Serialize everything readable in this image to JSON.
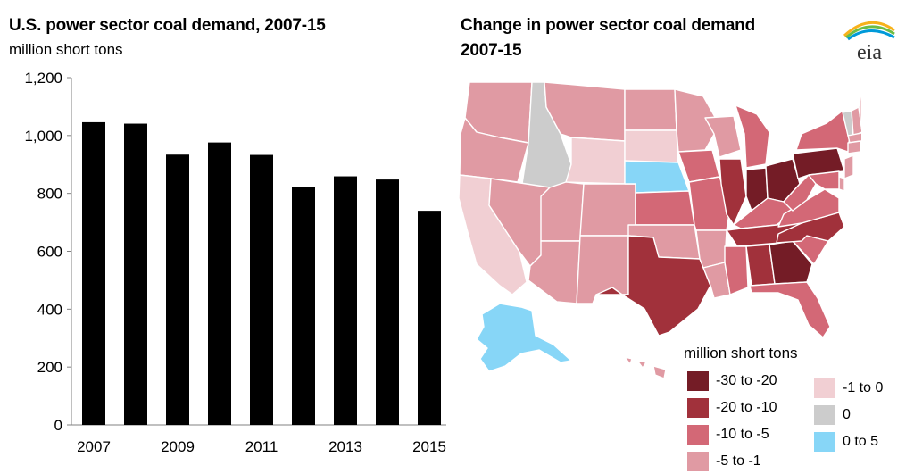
{
  "left": {
    "title": "U.S. power sector coal demand, 2007-15",
    "subtitle": "million short tons"
  },
  "right": {
    "title_line1": "Change in power sector  coal demand",
    "title_line2": "2007-15"
  },
  "logo": {
    "text": "eia",
    "icon": "eia-logo-icon",
    "arc_colors": [
      "#f7b21b",
      "#6cbd45",
      "#009ad9"
    ]
  },
  "chart_data": [
    {
      "type": "bar",
      "title": "U.S. power sector coal demand, 2007-15",
      "ylabel": "million short tons",
      "xlabel": "",
      "categories": [
        "2007",
        "2008",
        "2009",
        "2010",
        "2011",
        "2012",
        "2013",
        "2014",
        "2015"
      ],
      "values": [
        1046,
        1041,
        934,
        976,
        933,
        822,
        859,
        848,
        740
      ],
      "ylim": [
        0,
        1200
      ],
      "yticks": [
        0,
        200,
        400,
        600,
        800,
        1000,
        1200
      ],
      "ytick_labels": [
        "0",
        "200",
        "400",
        "600",
        "800",
        "1,000",
        "1,200"
      ],
      "xtick_labels": [
        "2007",
        "",
        "2009",
        "",
        "2011",
        "",
        "2013",
        "",
        "2015"
      ],
      "bar_color": "#000000",
      "grid": false
    },
    {
      "type": "map",
      "title": "Change in power sector  coal demand 2007-15",
      "legend_title": "million short tons",
      "legend": [
        {
          "label": "-30 to -20",
          "color": "#741c26"
        },
        {
          "label": "-20 to -10",
          "color": "#a1313b"
        },
        {
          "label": "-10 to -5",
          "color": "#d36876"
        },
        {
          "label": "-5 to -1",
          "color": "#e09aa3"
        },
        {
          "label": "-1 to 0",
          "color": "#f1cfd3"
        },
        {
          "label": "0",
          "color": "#cccccc"
        },
        {
          "label": "0 to 5",
          "color": "#87d6f7"
        }
      ],
      "regions": [
        {
          "id": "WA",
          "cat": 3
        },
        {
          "id": "OR",
          "cat": 3
        },
        {
          "id": "CA",
          "cat": 4
        },
        {
          "id": "NV",
          "cat": 3
        },
        {
          "id": "ID",
          "cat": 5
        },
        {
          "id": "MT",
          "cat": 3
        },
        {
          "id": "WY",
          "cat": 4
        },
        {
          "id": "UT",
          "cat": 3
        },
        {
          "id": "AZ",
          "cat": 3
        },
        {
          "id": "CO",
          "cat": 3
        },
        {
          "id": "NM",
          "cat": 3
        },
        {
          "id": "ND",
          "cat": 3
        },
        {
          "id": "SD",
          "cat": 4
        },
        {
          "id": "NE",
          "cat": 6
        },
        {
          "id": "KS",
          "cat": 2
        },
        {
          "id": "OK",
          "cat": 3
        },
        {
          "id": "TX",
          "cat": 1
        },
        {
          "id": "MN",
          "cat": 3
        },
        {
          "id": "IA",
          "cat": 2
        },
        {
          "id": "MO",
          "cat": 2
        },
        {
          "id": "AR",
          "cat": 3
        },
        {
          "id": "LA",
          "cat": 3
        },
        {
          "id": "WI",
          "cat": 3
        },
        {
          "id": "IL",
          "cat": 1
        },
        {
          "id": "MI",
          "cat": 2
        },
        {
          "id": "IN",
          "cat": 0
        },
        {
          "id": "OH",
          "cat": 0
        },
        {
          "id": "KY",
          "cat": 2
        },
        {
          "id": "TN",
          "cat": 1
        },
        {
          "id": "MS",
          "cat": 2
        },
        {
          "id": "AL",
          "cat": 1
        },
        {
          "id": "GA",
          "cat": 0
        },
        {
          "id": "FL",
          "cat": 2
        },
        {
          "id": "SC",
          "cat": 2
        },
        {
          "id": "NC",
          "cat": 1
        },
        {
          "id": "VA",
          "cat": 2
        },
        {
          "id": "WV",
          "cat": 2
        },
        {
          "id": "PA",
          "cat": 0
        },
        {
          "id": "NY",
          "cat": 2
        },
        {
          "id": "VT",
          "cat": 5
        },
        {
          "id": "NH",
          "cat": 3
        },
        {
          "id": "ME",
          "cat": 4
        },
        {
          "id": "MA",
          "cat": 3
        },
        {
          "id": "CT",
          "cat": 3
        },
        {
          "id": "NJ",
          "cat": 3
        },
        {
          "id": "MD",
          "cat": 2
        },
        {
          "id": "DE",
          "cat": 3
        },
        {
          "id": "AK",
          "cat": 6
        },
        {
          "id": "HI",
          "cat": 3
        }
      ]
    }
  ]
}
